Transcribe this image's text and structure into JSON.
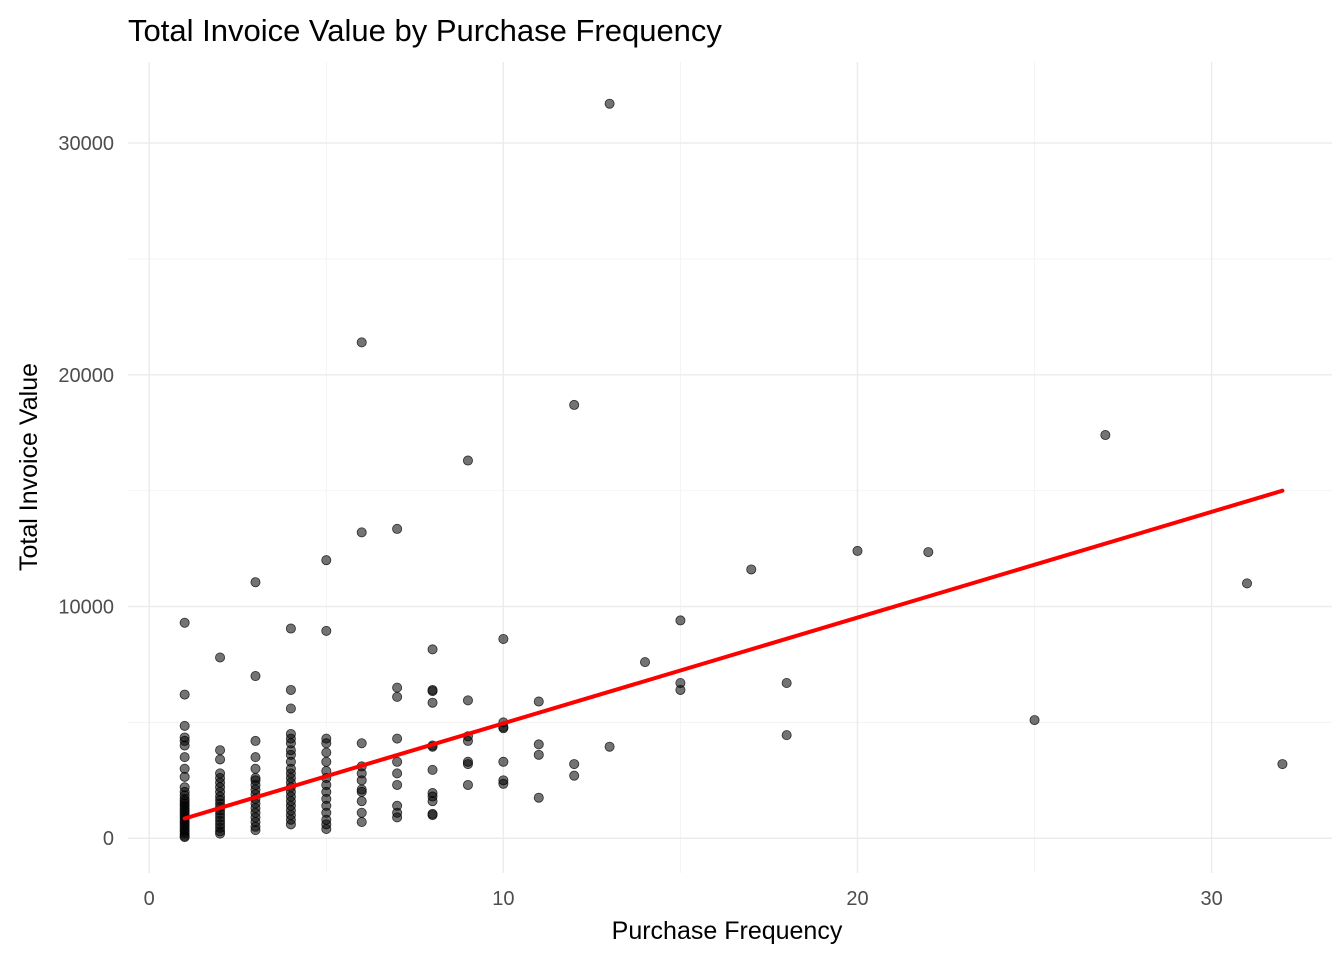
{
  "chart_data": {
    "type": "scatter",
    "title": "Total Invoice Value by Purchase Frequency",
    "xlabel": "Purchase Frequency",
    "ylabel": "Total Invoice Value",
    "xlim": [
      -0.6,
      33.4
    ],
    "ylim": [
      -1500,
      33500
    ],
    "xticks": [
      0,
      10,
      20,
      30
    ],
    "yticks": [
      0,
      10000,
      20000,
      30000
    ],
    "grid": true,
    "legend": "none",
    "point_color": "#000000",
    "trend_color": "#ff0000",
    "trend_line": {
      "x": [
        1,
        32
      ],
      "y": [
        850,
        15000
      ]
    },
    "points": [
      [
        1,
        9300
      ],
      [
        1,
        6200
      ],
      [
        1,
        4850
      ],
      [
        1,
        4350
      ],
      [
        1,
        4200
      ],
      [
        1,
        4000
      ],
      [
        1,
        3500
      ],
      [
        1,
        3000
      ],
      [
        1,
        2650
      ],
      [
        1,
        2200
      ],
      [
        1,
        2000
      ],
      [
        1,
        1850
      ],
      [
        1,
        1700
      ],
      [
        1,
        1600
      ],
      [
        1,
        1500
      ],
      [
        1,
        1400
      ],
      [
        1,
        1300
      ],
      [
        1,
        1200
      ],
      [
        1,
        1100
      ],
      [
        1,
        1000
      ],
      [
        1,
        900
      ],
      [
        1,
        800
      ],
      [
        1,
        700
      ],
      [
        1,
        600
      ],
      [
        1,
        500
      ],
      [
        1,
        400
      ],
      [
        1,
        300
      ],
      [
        1,
        200
      ],
      [
        1,
        100
      ],
      [
        1,
        50
      ],
      [
        2,
        7800
      ],
      [
        2,
        3800
      ],
      [
        2,
        3400
      ],
      [
        2,
        2800
      ],
      [
        2,
        2600
      ],
      [
        2,
        2400
      ],
      [
        2,
        2200
      ],
      [
        2,
        2000
      ],
      [
        2,
        1800
      ],
      [
        2,
        1650
      ],
      [
        2,
        1500
      ],
      [
        2,
        1350
      ],
      [
        2,
        1200
      ],
      [
        2,
        1050
      ],
      [
        2,
        900
      ],
      [
        2,
        750
      ],
      [
        2,
        600
      ],
      [
        2,
        450
      ],
      [
        2,
        300
      ],
      [
        2,
        200
      ],
      [
        3,
        11050
      ],
      [
        3,
        7000
      ],
      [
        3,
        4200
      ],
      [
        3,
        3500
      ],
      [
        3,
        3000
      ],
      [
        3,
        2600
      ],
      [
        3,
        2500
      ],
      [
        3,
        2300
      ],
      [
        3,
        2100
      ],
      [
        3,
        1900
      ],
      [
        3,
        1700
      ],
      [
        3,
        1500
      ],
      [
        3,
        1300
      ],
      [
        3,
        1100
      ],
      [
        3,
        900
      ],
      [
        3,
        700
      ],
      [
        3,
        500
      ],
      [
        3,
        350
      ],
      [
        4,
        9050
      ],
      [
        4,
        6400
      ],
      [
        4,
        5600
      ],
      [
        4,
        4500
      ],
      [
        4,
        4300
      ],
      [
        4,
        4100
      ],
      [
        4,
        3800
      ],
      [
        4,
        3600
      ],
      [
        4,
        3300
      ],
      [
        4,
        3000
      ],
      [
        4,
        2800
      ],
      [
        4,
        2600
      ],
      [
        4,
        2400
      ],
      [
        4,
        2200
      ],
      [
        4,
        2000
      ],
      [
        4,
        1800
      ],
      [
        4,
        1600
      ],
      [
        4,
        1400
      ],
      [
        4,
        1200
      ],
      [
        4,
        1000
      ],
      [
        4,
        800
      ],
      [
        4,
        600
      ],
      [
        5,
        12000
      ],
      [
        5,
        8950
      ],
      [
        5,
        4300
      ],
      [
        5,
        4100
      ],
      [
        5,
        3700
      ],
      [
        5,
        3300
      ],
      [
        5,
        2900
      ],
      [
        5,
        2600
      ],
      [
        5,
        2300
      ],
      [
        5,
        2000
      ],
      [
        5,
        1700
      ],
      [
        5,
        1400
      ],
      [
        5,
        1100
      ],
      [
        5,
        800
      ],
      [
        5,
        600
      ],
      [
        5,
        400
      ],
      [
        6,
        21400
      ],
      [
        6,
        13200
      ],
      [
        6,
        4100
      ],
      [
        6,
        3100
      ],
      [
        6,
        2800
      ],
      [
        6,
        2500
      ],
      [
        6,
        2100
      ],
      [
        6,
        2000
      ],
      [
        6,
        1600
      ],
      [
        6,
        1100
      ],
      [
        6,
        700
      ],
      [
        7,
        13350
      ],
      [
        7,
        6500
      ],
      [
        7,
        6100
      ],
      [
        7,
        4300
      ],
      [
        7,
        3300
      ],
      [
        7,
        2800
      ],
      [
        7,
        2300
      ],
      [
        7,
        1400
      ],
      [
        7,
        1100
      ],
      [
        7,
        900
      ],
      [
        8,
        8150
      ],
      [
        8,
        6400
      ],
      [
        8,
        6350
      ],
      [
        8,
        5850
      ],
      [
        8,
        4000
      ],
      [
        8,
        3950
      ],
      [
        8,
        2950
      ],
      [
        8,
        1950
      ],
      [
        8,
        1800
      ],
      [
        8,
        1600
      ],
      [
        8,
        1050
      ],
      [
        8,
        1000
      ],
      [
        9,
        16300
      ],
      [
        9,
        5950
      ],
      [
        9,
        4400
      ],
      [
        9,
        4200
      ],
      [
        9,
        3300
      ],
      [
        9,
        3200
      ],
      [
        9,
        2300
      ],
      [
        10,
        8600
      ],
      [
        10,
        5000
      ],
      [
        10,
        4800
      ],
      [
        10,
        4750
      ],
      [
        10,
        3300
      ],
      [
        10,
        2500
      ],
      [
        10,
        2350
      ],
      [
        11,
        5900
      ],
      [
        11,
        4050
      ],
      [
        11,
        3600
      ],
      [
        11,
        1750
      ],
      [
        12,
        18700
      ],
      [
        12,
        3200
      ],
      [
        12,
        2700
      ],
      [
        13,
        31700
      ],
      [
        13,
        3950
      ],
      [
        14,
        7600
      ],
      [
        15,
        9400
      ],
      [
        15,
        6700
      ],
      [
        15,
        6400
      ],
      [
        17,
        11600
      ],
      [
        18,
        6700
      ],
      [
        18,
        4450
      ],
      [
        20,
        12400
      ],
      [
        22,
        12350
      ],
      [
        25,
        5100
      ],
      [
        27,
        17400
      ],
      [
        31,
        11000
      ],
      [
        32,
        3200
      ]
    ]
  }
}
